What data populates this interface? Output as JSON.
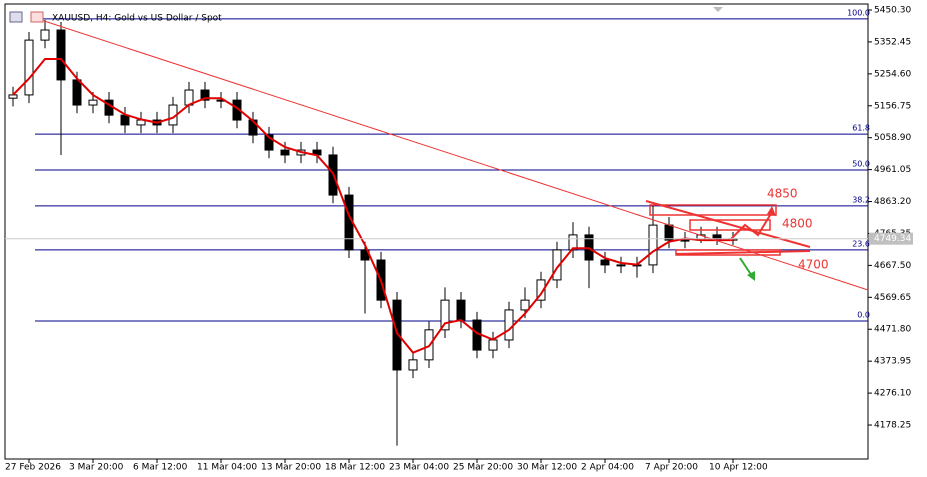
{
  "chart_data": {
    "type": "candlestick",
    "title": "XAUUSD, H4:  Gold vs US Dollar / Spot",
    "categories": [
      null,
      "27 Feb 2026",
      null,
      null,
      null,
      "3 Mar 20:00",
      null,
      null,
      null,
      "6 Mar 12:00",
      null,
      null,
      null,
      "11 Mar 04:00",
      null,
      null,
      null,
      "13 Mar 20:00",
      null,
      null,
      null,
      "18 Mar 12:00",
      null,
      null,
      null,
      "23 Mar 04:00",
      null,
      null,
      null,
      "25 Mar 20:00",
      null,
      null,
      null,
      "30 Mar 12:00",
      null,
      null,
      null,
      "2 Apr 04:00",
      null,
      null,
      null,
      "7 Apr 20:00",
      null,
      null,
      null,
      "10 Apr 12:00"
    ],
    "open": [
      5180,
      5190,
      5358,
      5389,
      5236,
      5159,
      5174,
      5128,
      5098,
      5113,
      5098,
      5159,
      5205,
      5174,
      5174,
      5113,
      5067,
      5021,
      5006,
      5021,
      5006,
      4883,
      4715,
      4684,
      4561,
      4347,
      4378,
      4470,
      4561,
      4500,
      4408,
      4439,
      4531,
      4561,
      4623,
      4715,
      4761,
      4684,
      4669,
      4669,
      4669,
      4791,
      4745,
      4745,
      4761,
      4745
    ],
    "high": [
      5215,
      5383,
      5420,
      5414,
      5261,
      5199,
      5199,
      5153,
      5138,
      5138,
      5184,
      5230,
      5230,
      5199,
      5199,
      5138,
      5092,
      5046,
      5046,
      5046,
      5031,
      4908,
      4740,
      4709,
      4586,
      4403,
      4495,
      4600,
      4586,
      4525,
      4464,
      4556,
      4600,
      4648,
      4740,
      4800,
      4786,
      4709,
      4694,
      4694,
      4850,
      4816,
      4770,
      4786,
      4786,
      4770
    ],
    "low": [
      5155,
      5165,
      5333,
      5006,
      5134,
      5134,
      5103,
      5073,
      5073,
      5073,
      5073,
      5134,
      5149,
      5149,
      5088,
      5042,
      4996,
      4981,
      4981,
      4981,
      4858,
      4690,
      4520,
      4536,
      4115,
      4322,
      4353,
      4445,
      4475,
      4383,
      4383,
      4414,
      4506,
      4536,
      4598,
      4690,
      4598,
      4644,
      4644,
      4630,
      4644,
      4720,
      4720,
      4736,
      4730,
      4730
    ],
    "close": [
      5190,
      5358,
      5389,
      5236,
      5159,
      5174,
      5128,
      5098,
      5113,
      5098,
      5159,
      5205,
      5174,
      5174,
      5113,
      5067,
      5021,
      5006,
      5021,
      5006,
      4883,
      4715,
      4684,
      4561,
      4347,
      4378,
      4470,
      4561,
      4500,
      4408,
      4439,
      4531,
      4561,
      4623,
      4715,
      4761,
      4684,
      4669,
      4669,
      4669,
      4791,
      4745,
      4745,
      4761,
      4745,
      4749
    ],
    "up_color": "#ffffff",
    "down_color": "#000000",
    "ma": {
      "color": "#e00000",
      "values": [
        5190,
        5240,
        5300,
        5300,
        5240,
        5190,
        5160,
        5130,
        5115,
        5105,
        5120,
        5160,
        5180,
        5180,
        5150,
        5110,
        5060,
        5030,
        5015,
        5005,
        4950,
        4820,
        4730,
        4620,
        4460,
        4400,
        4420,
        4490,
        4500,
        4460,
        4440,
        4470,
        4520,
        4580,
        4660,
        4720,
        4720,
        4690,
        4675,
        4670,
        4710,
        4740,
        4750,
        4745,
        4745,
        4745
      ]
    },
    "fib_levels": [
      {
        "label": "100.0",
        "value": 5423
      },
      {
        "label": "61.8",
        "value": 5070
      },
      {
        "label": "50.0",
        "value": 4960
      },
      {
        "label": "38.2",
        "value": 4850
      },
      {
        "label": "23.6",
        "value": 4715
      },
      {
        "label": "0.0",
        "value": 4497
      }
    ],
    "fib_color": "#00008b",
    "ylim": [
      4071.05,
      5480.95
    ],
    "yticks": [
      {
        "value": 5450.3,
        "label": "5450.30"
      },
      {
        "value": 5352.45,
        "label": "5352.45"
      },
      {
        "value": 5254.6,
        "label": "5254.60"
      },
      {
        "value": 5156.75,
        "label": "5156.75"
      },
      {
        "value": 5058.9,
        "label": "5058.90"
      },
      {
        "value": 4961.05,
        "label": "4961.05"
      },
      {
        "value": 4863.2,
        "label": "4863.20"
      },
      {
        "value": 4765.35,
        "label": "4765.35"
      },
      {
        "value": 4667.5,
        "label": "4667.50"
      },
      {
        "value": 4569.65,
        "label": "4569.65"
      },
      {
        "value": 4471.8,
        "label": "4471.80"
      },
      {
        "value": 4373.95,
        "label": "4373.95"
      },
      {
        "value": 4276.1,
        "label": "4276.10"
      },
      {
        "value": 4178.25,
        "label": "4178.25"
      }
    ],
    "last_price": 4749.34,
    "annotations": [
      "4850",
      "4800",
      "4700"
    ]
  }
}
